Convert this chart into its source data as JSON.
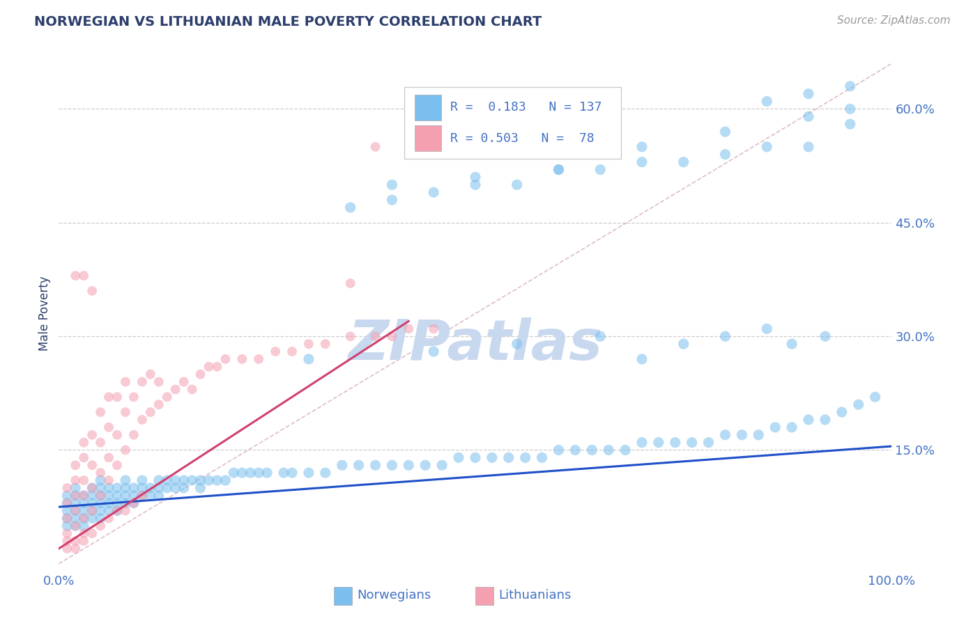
{
  "title": "NORWEGIAN VS LITHUANIAN MALE POVERTY CORRELATION CHART",
  "source": "Source: ZipAtlas.com",
  "ylabel": "Male Poverty",
  "title_color": "#2C3E6B",
  "source_color": "#999999",
  "axis_label_color": "#2C3E6B",
  "tick_label_color": "#4472C4",
  "background_color": "#FFFFFF",
  "grid_color": "#CCCCCC",
  "watermark": "ZIPatlas",
  "watermark_color": "#C8D8EE",
  "color_norwegian": "#7ABFEE",
  "color_lithuanian": "#F4A0B0",
  "line_color_norwegian": "#1E50C8",
  "line_color_lithuanian": "#D04070",
  "x_range": [
    0.0,
    1.0
  ],
  "y_range": [
    -0.01,
    0.67
  ],
  "y_tick_values": [
    0.15,
    0.3,
    0.45,
    0.6
  ],
  "norwegian_line_x": [
    0.0,
    1.0
  ],
  "norwegian_line_y": [
    0.075,
    0.155
  ],
  "lithuanian_line_x": [
    0.0,
    0.42
  ],
  "lithuanian_line_y": [
    0.02,
    0.32
  ],
  "reference_line_x": [
    0.0,
    1.0
  ],
  "reference_line_y": [
    0.0,
    0.66
  ],
  "dot_size_norwegian": 120,
  "dot_size_lithuanian": 100,
  "dot_alpha": 0.55,
  "norwegian_scatter_x": [
    0.01,
    0.01,
    0.01,
    0.01,
    0.01,
    0.02,
    0.02,
    0.02,
    0.02,
    0.02,
    0.02,
    0.03,
    0.03,
    0.03,
    0.03,
    0.03,
    0.04,
    0.04,
    0.04,
    0.04,
    0.04,
    0.05,
    0.05,
    0.05,
    0.05,
    0.05,
    0.05,
    0.06,
    0.06,
    0.06,
    0.06,
    0.07,
    0.07,
    0.07,
    0.07,
    0.08,
    0.08,
    0.08,
    0.08,
    0.09,
    0.09,
    0.09,
    0.1,
    0.1,
    0.1,
    0.11,
    0.11,
    0.12,
    0.12,
    0.12,
    0.13,
    0.13,
    0.14,
    0.14,
    0.15,
    0.15,
    0.16,
    0.17,
    0.17,
    0.18,
    0.19,
    0.2,
    0.21,
    0.22,
    0.23,
    0.24,
    0.25,
    0.27,
    0.28,
    0.3,
    0.32,
    0.34,
    0.36,
    0.38,
    0.4,
    0.42,
    0.44,
    0.46,
    0.48,
    0.5,
    0.52,
    0.54,
    0.56,
    0.58,
    0.6,
    0.62,
    0.64,
    0.66,
    0.68,
    0.7,
    0.72,
    0.74,
    0.76,
    0.78,
    0.8,
    0.82,
    0.84,
    0.86,
    0.88,
    0.9,
    0.92,
    0.94,
    0.96,
    0.98,
    0.3,
    0.45,
    0.55,
    0.65,
    0.7,
    0.75,
    0.8,
    0.85,
    0.88,
    0.92,
    0.4,
    0.5,
    0.6,
    0.7,
    0.8,
    0.9,
    0.35,
    0.45,
    0.55,
    0.65,
    0.75,
    0.85,
    0.95,
    0.4,
    0.5,
    0.6,
    0.7,
    0.8,
    0.9,
    0.95,
    0.85,
    0.9,
    0.95
  ],
  "norwegian_scatter_y": [
    0.05,
    0.06,
    0.07,
    0.08,
    0.09,
    0.05,
    0.06,
    0.07,
    0.08,
    0.09,
    0.1,
    0.05,
    0.06,
    0.07,
    0.08,
    0.09,
    0.06,
    0.07,
    0.08,
    0.09,
    0.1,
    0.06,
    0.07,
    0.08,
    0.09,
    0.1,
    0.11,
    0.07,
    0.08,
    0.09,
    0.1,
    0.07,
    0.08,
    0.09,
    0.1,
    0.08,
    0.09,
    0.1,
    0.11,
    0.08,
    0.09,
    0.1,
    0.09,
    0.1,
    0.11,
    0.09,
    0.1,
    0.09,
    0.1,
    0.11,
    0.1,
    0.11,
    0.1,
    0.11,
    0.1,
    0.11,
    0.11,
    0.1,
    0.11,
    0.11,
    0.11,
    0.11,
    0.12,
    0.12,
    0.12,
    0.12,
    0.12,
    0.12,
    0.12,
    0.12,
    0.12,
    0.13,
    0.13,
    0.13,
    0.13,
    0.13,
    0.13,
    0.13,
    0.14,
    0.14,
    0.14,
    0.14,
    0.14,
    0.14,
    0.15,
    0.15,
    0.15,
    0.15,
    0.15,
    0.16,
    0.16,
    0.16,
    0.16,
    0.16,
    0.17,
    0.17,
    0.17,
    0.18,
    0.18,
    0.19,
    0.19,
    0.2,
    0.21,
    0.22,
    0.27,
    0.28,
    0.29,
    0.3,
    0.27,
    0.29,
    0.3,
    0.31,
    0.29,
    0.3,
    0.5,
    0.51,
    0.52,
    0.53,
    0.54,
    0.55,
    0.47,
    0.49,
    0.5,
    0.52,
    0.53,
    0.55,
    0.58,
    0.48,
    0.5,
    0.52,
    0.55,
    0.57,
    0.59,
    0.6,
    0.61,
    0.62,
    0.63
  ],
  "lithuanian_scatter_x": [
    0.01,
    0.01,
    0.01,
    0.01,
    0.02,
    0.02,
    0.02,
    0.02,
    0.02,
    0.03,
    0.03,
    0.03,
    0.03,
    0.03,
    0.04,
    0.04,
    0.04,
    0.04,
    0.05,
    0.05,
    0.05,
    0.05,
    0.06,
    0.06,
    0.06,
    0.06,
    0.07,
    0.07,
    0.07,
    0.08,
    0.08,
    0.08,
    0.09,
    0.09,
    0.1,
    0.1,
    0.11,
    0.11,
    0.12,
    0.12,
    0.13,
    0.14,
    0.15,
    0.16,
    0.17,
    0.18,
    0.19,
    0.2,
    0.22,
    0.24,
    0.26,
    0.28,
    0.3,
    0.32,
    0.35,
    0.38,
    0.4,
    0.42,
    0.45,
    0.01,
    0.01,
    0.02,
    0.02,
    0.03,
    0.03,
    0.04,
    0.05,
    0.06,
    0.07,
    0.08,
    0.09,
    0.1,
    0.35,
    0.38,
    0.02,
    0.03,
    0.04
  ],
  "lithuanian_scatter_y": [
    0.04,
    0.06,
    0.08,
    0.1,
    0.05,
    0.07,
    0.09,
    0.11,
    0.13,
    0.06,
    0.09,
    0.11,
    0.14,
    0.16,
    0.07,
    0.1,
    0.13,
    0.17,
    0.09,
    0.12,
    0.16,
    0.2,
    0.11,
    0.14,
    0.18,
    0.22,
    0.13,
    0.17,
    0.22,
    0.15,
    0.2,
    0.24,
    0.17,
    0.22,
    0.19,
    0.24,
    0.2,
    0.25,
    0.21,
    0.24,
    0.22,
    0.23,
    0.24,
    0.23,
    0.25,
    0.26,
    0.26,
    0.27,
    0.27,
    0.27,
    0.28,
    0.28,
    0.29,
    0.29,
    0.3,
    0.3,
    0.3,
    0.31,
    0.31,
    0.02,
    0.03,
    0.02,
    0.03,
    0.03,
    0.04,
    0.04,
    0.05,
    0.06,
    0.07,
    0.07,
    0.08,
    0.09,
    0.37,
    0.55,
    0.38,
    0.38,
    0.36
  ]
}
